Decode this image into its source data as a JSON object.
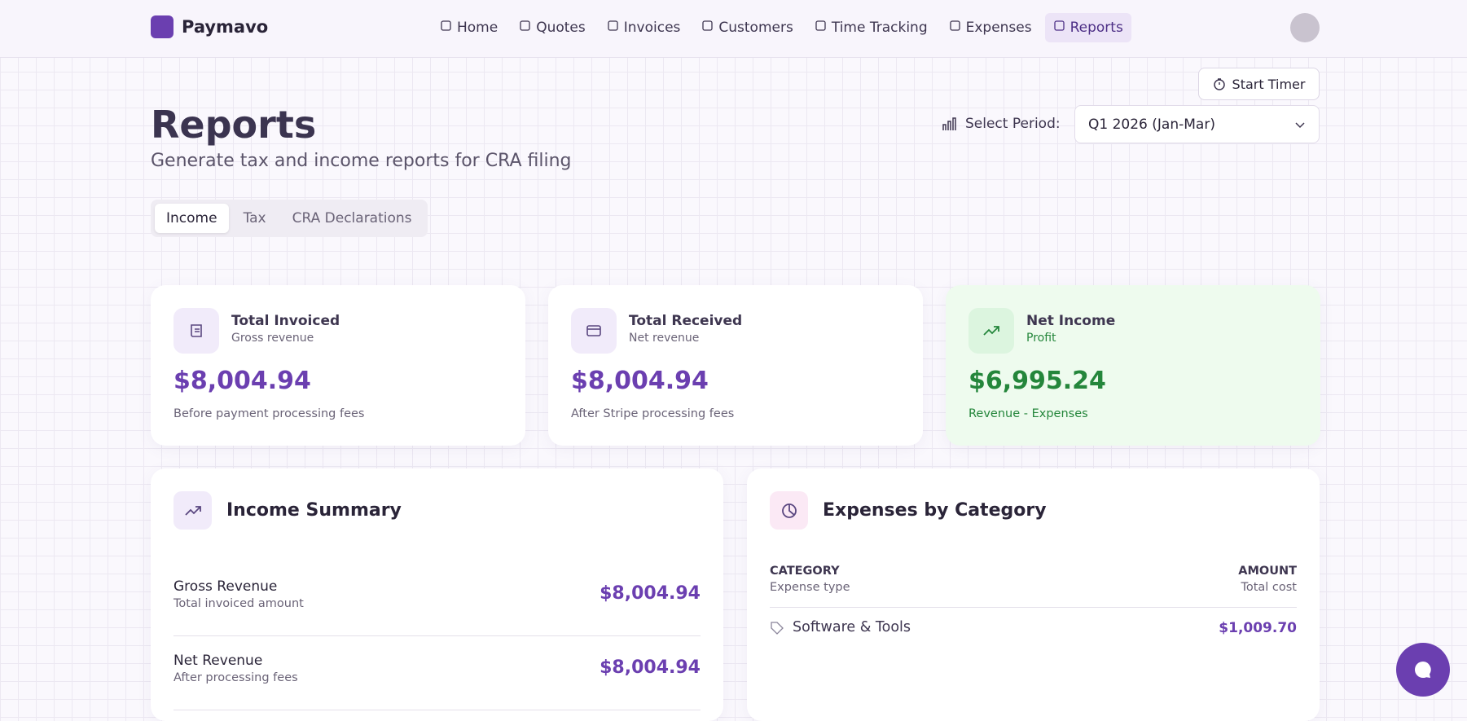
{
  "brand": "Paymavo",
  "nav": [
    "Home",
    "Quotes",
    "Invoices",
    "Customers",
    "Time Tracking",
    "Expenses",
    "Reports"
  ],
  "actions": {
    "start_timer": "Start Timer"
  },
  "header": {
    "title": "Reports",
    "subtitle": "Generate tax and income reports for CRA filing"
  },
  "period": {
    "label": "Select Period:",
    "value": "Q1 2026 (Jan-Mar)"
  },
  "tabs": [
    "Income",
    "Tax",
    "CRA Declarations"
  ],
  "cards": [
    {
      "title": "Total Invoiced",
      "subtitle": "Gross revenue",
      "amount": "$8,004.94",
      "note": "Before payment processing fees"
    },
    {
      "title": "Total Received",
      "subtitle": "Net revenue",
      "amount": "$8,004.94",
      "note": "After Stripe processing fees"
    },
    {
      "title": "Net Income",
      "subtitle": "Profit",
      "amount": "$6,995.24",
      "note": "Revenue - Expenses"
    }
  ],
  "income_summary": {
    "title": "Income Summary",
    "rows": [
      {
        "label": "Gross Revenue",
        "sublabel": "Total invoiced amount",
        "amount": "$8,004.94"
      },
      {
        "label": "Net Revenue",
        "sublabel": "After processing fees",
        "amount": "$8,004.94"
      }
    ]
  },
  "expenses": {
    "title": "Expenses by Category",
    "columns": [
      {
        "label": "CATEGORY",
        "sublabel": "Expense type"
      },
      {
        "label": "AMOUNT",
        "sublabel": "Total cost"
      }
    ],
    "rows": [
      {
        "category": "Software & Tools",
        "amount": "$1,009.70"
      }
    ]
  }
}
